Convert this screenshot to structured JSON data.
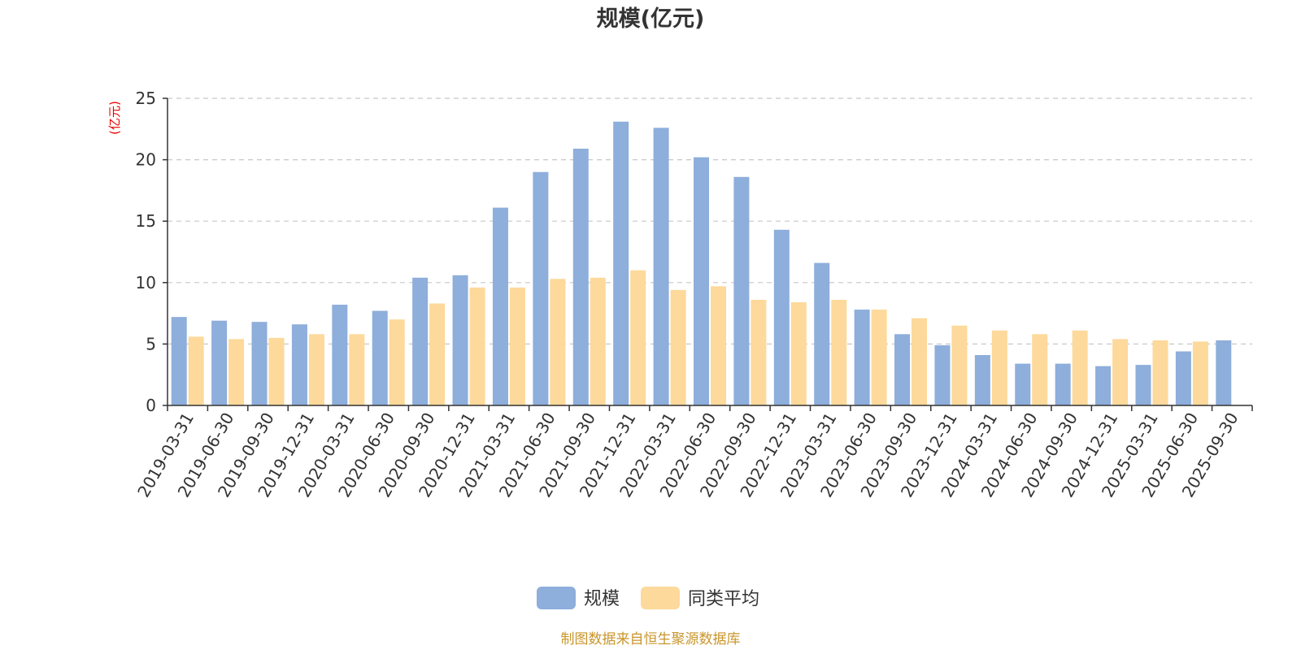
{
  "chart_data": {
    "type": "bar",
    "title": "规模(亿元)",
    "ylabel": "(亿元)",
    "xlabel": "",
    "ylim": [
      0,
      25
    ],
    "yticks": [
      0,
      5,
      10,
      15,
      20,
      25
    ],
    "grid": true,
    "legend_position": "bottom-center",
    "categories": [
      "2019-03-31",
      "2019-06-30",
      "2019-09-30",
      "2019-12-31",
      "2020-03-31",
      "2020-06-30",
      "2020-09-30",
      "2020-12-31",
      "2021-03-31",
      "2021-06-30",
      "2021-09-30",
      "2021-12-31",
      "2022-03-31",
      "2022-06-30",
      "2022-09-30",
      "2022-12-31",
      "2023-03-31",
      "2023-06-30",
      "2023-09-30",
      "2023-12-31",
      "2024-03-31",
      "2024-06-30",
      "2024-09-30",
      "2024-12-31",
      "2025-03-31",
      "2025-06-30",
      "2025-09-30"
    ],
    "series": [
      {
        "name": "规模",
        "color": "#8eaedb",
        "values": [
          7.2,
          6.9,
          6.8,
          6.6,
          8.2,
          7.7,
          10.4,
          10.6,
          16.1,
          19.0,
          20.9,
          23.1,
          22.6,
          20.2,
          18.6,
          14.3,
          11.6,
          7.8,
          5.8,
          4.9,
          4.1,
          3.4,
          3.4,
          3.2,
          3.3,
          4.4,
          5.3
        ]
      },
      {
        "name": "同类平均",
        "color": "#fdd99b",
        "values": [
          5.6,
          5.4,
          5.5,
          5.8,
          5.8,
          7.0,
          8.3,
          9.6,
          9.6,
          10.3,
          10.4,
          11.0,
          9.4,
          9.7,
          8.6,
          8.4,
          8.6,
          7.8,
          7.1,
          6.5,
          6.1,
          5.8,
          6.1,
          5.4,
          5.3,
          5.2,
          null
        ]
      }
    ],
    "source_note": "制图数据来自恒生聚源数据库"
  }
}
